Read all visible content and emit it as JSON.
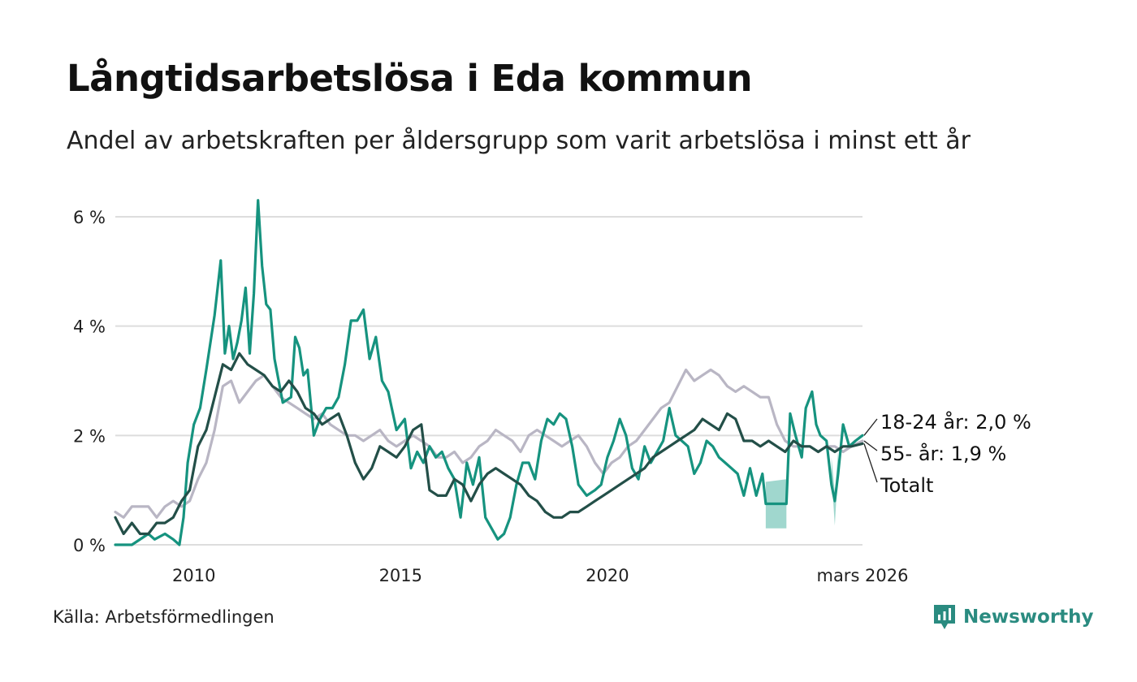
{
  "title": "Långtidsarbetslösa i Eda kommun",
  "subtitle": "Andel av arbetskraften per åldersgrupp som varit arbetslösa i minst ett år",
  "source": "Källa: Arbetsförmedlingen",
  "brand": "Newsworthy",
  "colors": {
    "young": "#16937f",
    "old": "#b9b6c4",
    "total": "#234f48",
    "band": "#8fd0c5",
    "grid": "#dddddd",
    "brand": "#2a8b80"
  },
  "chart_data": {
    "type": "line",
    "title": "Långtidsarbetslösa i Eda kommun",
    "xlim": [
      2008.1,
      2026.17
    ],
    "ylim": [
      0,
      6.4
    ],
    "x_ticks": [
      {
        "value": 2010,
        "label": "2010"
      },
      {
        "value": 2015,
        "label": "2015"
      },
      {
        "value": 2020,
        "label": "2020"
      },
      {
        "value": 2026.17,
        "label": "mars 2026"
      }
    ],
    "y_ticks": [
      {
        "value": 0,
        "label": "0 %"
      },
      {
        "value": 2,
        "label": "2 %"
      },
      {
        "value": 4,
        "label": "4 %"
      },
      {
        "value": 6,
        "label": "6 %"
      }
    ],
    "uncertainty_bands": [
      {
        "series": "18-24 år",
        "x": [
          2023.83,
          2024.33
        ],
        "low": [
          0.3,
          0.3
        ],
        "high": [
          1.15,
          1.2
        ]
      },
      {
        "series": "18-24 år",
        "x": [
          2025.42,
          2025.5,
          2025.58
        ],
        "low": [
          1.3,
          0.35,
          1.4
        ],
        "high": [
          1.6,
          0.95,
          1.7
        ]
      }
    ],
    "series": [
      {
        "name": "55- år",
        "label": "55- år: 1,9 %",
        "x": [
          2008.1,
          2008.3,
          2008.5,
          2008.7,
          2008.9,
          2009.1,
          2009.3,
          2009.5,
          2009.7,
          2009.9,
          2010.1,
          2010.3,
          2010.5,
          2010.7,
          2010.9,
          2011.1,
          2011.3,
          2011.5,
          2011.7,
          2011.9,
          2012.1,
          2012.3,
          2012.5,
          2012.7,
          2012.9,
          2013.1,
          2013.3,
          2013.5,
          2013.7,
          2013.9,
          2014.1,
          2014.3,
          2014.5,
          2014.7,
          2014.9,
          2015.1,
          2015.3,
          2015.5,
          2015.7,
          2015.9,
          2016.1,
          2016.3,
          2016.5,
          2016.7,
          2016.9,
          2017.1,
          2017.3,
          2017.5,
          2017.7,
          2017.9,
          2018.1,
          2018.3,
          2018.5,
          2018.7,
          2018.9,
          2019.1,
          2019.3,
          2019.5,
          2019.7,
          2019.9,
          2020.1,
          2020.3,
          2020.5,
          2020.7,
          2020.9,
          2021.1,
          2021.3,
          2021.5,
          2021.7,
          2021.9,
          2022.1,
          2022.3,
          2022.5,
          2022.7,
          2022.9,
          2023.1,
          2023.3,
          2023.5,
          2023.7,
          2023.9,
          2024.1,
          2024.3,
          2024.5,
          2024.7,
          2024.9,
          2025.1,
          2025.3,
          2025.5,
          2025.7,
          2025.9,
          2026.17
        ],
        "y": [
          0.6,
          0.5,
          0.7,
          0.7,
          0.7,
          0.5,
          0.7,
          0.8,
          0.7,
          0.8,
          1.2,
          1.5,
          2.1,
          2.9,
          3.0,
          2.6,
          2.8,
          3.0,
          3.1,
          2.9,
          2.7,
          2.6,
          2.5,
          2.4,
          2.3,
          2.4,
          2.2,
          2.1,
          2.0,
          2.0,
          1.9,
          2.0,
          2.1,
          1.9,
          1.8,
          1.9,
          2.0,
          1.9,
          1.8,
          1.6,
          1.6,
          1.7,
          1.5,
          1.6,
          1.8,
          1.9,
          2.1,
          2.0,
          1.9,
          1.7,
          2.0,
          2.1,
          2.0,
          1.9,
          1.8,
          1.9,
          2.0,
          1.8,
          1.5,
          1.3,
          1.5,
          1.6,
          1.8,
          1.9,
          2.1,
          2.3,
          2.5,
          2.6,
          2.9,
          3.2,
          3.0,
          3.1,
          3.2,
          3.1,
          2.9,
          2.8,
          2.9,
          2.8,
          2.7,
          2.7,
          2.2,
          1.9,
          1.8,
          1.8,
          1.8,
          1.7,
          1.8,
          1.8,
          1.7,
          1.8,
          1.9
        ]
      },
      {
        "name": "18-24 år",
        "label": "18-24 år: 2,0 %",
        "x": [
          2008.1,
          2008.5,
          2008.9,
          2009.05,
          2009.3,
          2009.5,
          2009.65,
          2009.75,
          2009.85,
          2010.0,
          2010.15,
          2010.3,
          2010.5,
          2010.65,
          2010.75,
          2010.85,
          2010.95,
          2011.05,
          2011.15,
          2011.25,
          2011.35,
          2011.45,
          2011.55,
          2011.65,
          2011.75,
          2011.85,
          2011.95,
          2012.15,
          2012.35,
          2012.45,
          2012.55,
          2012.65,
          2012.75,
          2012.9,
          2013.05,
          2013.2,
          2013.35,
          2013.5,
          2013.65,
          2013.8,
          2013.95,
          2014.1,
          2014.25,
          2014.4,
          2014.55,
          2014.7,
          2014.9,
          2015.1,
          2015.25,
          2015.4,
          2015.55,
          2015.7,
          2015.85,
          2016.0,
          2016.15,
          2016.3,
          2016.45,
          2016.6,
          2016.75,
          2016.9,
          2017.05,
          2017.2,
          2017.35,
          2017.5,
          2017.65,
          2017.8,
          2017.95,
          2018.1,
          2018.25,
          2018.4,
          2018.55,
          2018.7,
          2018.85,
          2019.0,
          2019.15,
          2019.3,
          2019.5,
          2019.7,
          2019.85,
          2020.0,
          2020.15,
          2020.3,
          2020.45,
          2020.6,
          2020.75,
          2020.9,
          2021.05,
          2021.2,
          2021.35,
          2021.5,
          2021.65,
          2021.8,
          2021.95,
          2022.1,
          2022.25,
          2022.4,
          2022.55,
          2022.7,
          2022.85,
          2023.0,
          2023.15,
          2023.3,
          2023.45,
          2023.6,
          2023.75,
          2023.83,
          2024.33,
          2024.42,
          2024.55,
          2024.7,
          2024.8,
          2024.95,
          2025.05,
          2025.15,
          2025.3,
          2025.42,
          2025.5,
          2025.58,
          2025.7,
          2025.85,
          2026.0,
          2026.17
        ],
        "y": [
          0,
          0,
          0.2,
          0.1,
          0.2,
          0.1,
          0,
          0.5,
          1.5,
          2.2,
          2.5,
          3.2,
          4.2,
          5.2,
          3.5,
          4.0,
          3.4,
          3.7,
          4.1,
          4.7,
          3.5,
          4.6,
          6.3,
          5.1,
          4.4,
          4.3,
          3.4,
          2.6,
          2.7,
          3.8,
          3.6,
          3.1,
          3.2,
          2.0,
          2.3,
          2.5,
          2.5,
          2.7,
          3.3,
          4.1,
          4.1,
          4.3,
          3.4,
          3.8,
          3.0,
          2.8,
          2.1,
          2.3,
          1.4,
          1.7,
          1.5,
          1.8,
          1.6,
          1.7,
          1.4,
          1.2,
          0.5,
          1.5,
          1.1,
          1.6,
          0.5,
          0.3,
          0.1,
          0.2,
          0.5,
          1.1,
          1.5,
          1.5,
          1.2,
          1.9,
          2.3,
          2.2,
          2.4,
          2.3,
          1.8,
          1.1,
          0.9,
          1.0,
          1.1,
          1.6,
          1.9,
          2.3,
          2.0,
          1.4,
          1.2,
          1.8,
          1.5,
          1.7,
          1.9,
          2.5,
          2.0,
          1.9,
          1.8,
          1.3,
          1.5,
          1.9,
          1.8,
          1.6,
          1.5,
          1.4,
          1.3,
          0.9,
          1.4,
          0.9,
          1.3,
          0.75,
          0.75,
          2.4,
          2.0,
          1.6,
          2.5,
          2.8,
          2.2,
          2.0,
          1.9,
          1.1,
          0.8,
          1.3,
          2.2,
          1.8,
          1.9,
          2.0
        ]
      },
      {
        "name": "Totalt",
        "label": "Totalt",
        "x": [
          2008.1,
          2008.3,
          2008.5,
          2008.7,
          2008.9,
          2009.1,
          2009.3,
          2009.5,
          2009.7,
          2009.9,
          2010.1,
          2010.3,
          2010.5,
          2010.7,
          2010.9,
          2011.1,
          2011.3,
          2011.5,
          2011.7,
          2011.9,
          2012.1,
          2012.3,
          2012.5,
          2012.7,
          2012.9,
          2013.1,
          2013.3,
          2013.5,
          2013.7,
          2013.9,
          2014.1,
          2014.3,
          2014.5,
          2014.7,
          2014.9,
          2015.1,
          2015.3,
          2015.5,
          2015.7,
          2015.9,
          2016.1,
          2016.3,
          2016.5,
          2016.7,
          2016.9,
          2017.1,
          2017.3,
          2017.5,
          2017.7,
          2017.9,
          2018.1,
          2018.3,
          2018.5,
          2018.7,
          2018.9,
          2019.1,
          2019.3,
          2019.5,
          2019.7,
          2019.9,
          2020.1,
          2020.3,
          2020.5,
          2020.7,
          2020.9,
          2021.1,
          2021.3,
          2021.5,
          2021.7,
          2021.9,
          2022.1,
          2022.3,
          2022.5,
          2022.7,
          2022.9,
          2023.1,
          2023.3,
          2023.5,
          2023.7,
          2023.9,
          2024.1,
          2024.3,
          2024.5,
          2024.7,
          2024.9,
          2025.1,
          2025.3,
          2025.5,
          2025.7,
          2025.9,
          2026.17
        ],
        "y": [
          0.5,
          0.2,
          0.4,
          0.2,
          0.2,
          0.4,
          0.4,
          0.5,
          0.8,
          1.0,
          1.8,
          2.1,
          2.7,
          3.3,
          3.2,
          3.5,
          3.3,
          3.2,
          3.1,
          2.9,
          2.8,
          3.0,
          2.8,
          2.5,
          2.4,
          2.2,
          2.3,
          2.4,
          2.0,
          1.5,
          1.2,
          1.4,
          1.8,
          1.7,
          1.6,
          1.8,
          2.1,
          2.2,
          1.0,
          0.9,
          0.9,
          1.2,
          1.1,
          0.8,
          1.1,
          1.3,
          1.4,
          1.3,
          1.2,
          1.1,
          0.9,
          0.8,
          0.6,
          0.5,
          0.5,
          0.6,
          0.6,
          0.7,
          0.8,
          0.9,
          1.0,
          1.1,
          1.2,
          1.3,
          1.4,
          1.6,
          1.7,
          1.8,
          1.9,
          2.0,
          2.1,
          2.3,
          2.2,
          2.1,
          2.4,
          2.3,
          1.9,
          1.9,
          1.8,
          1.9,
          1.8,
          1.7,
          1.9,
          1.8,
          1.8,
          1.7,
          1.8,
          1.7,
          1.8,
          1.8,
          1.85
        ]
      }
    ]
  }
}
